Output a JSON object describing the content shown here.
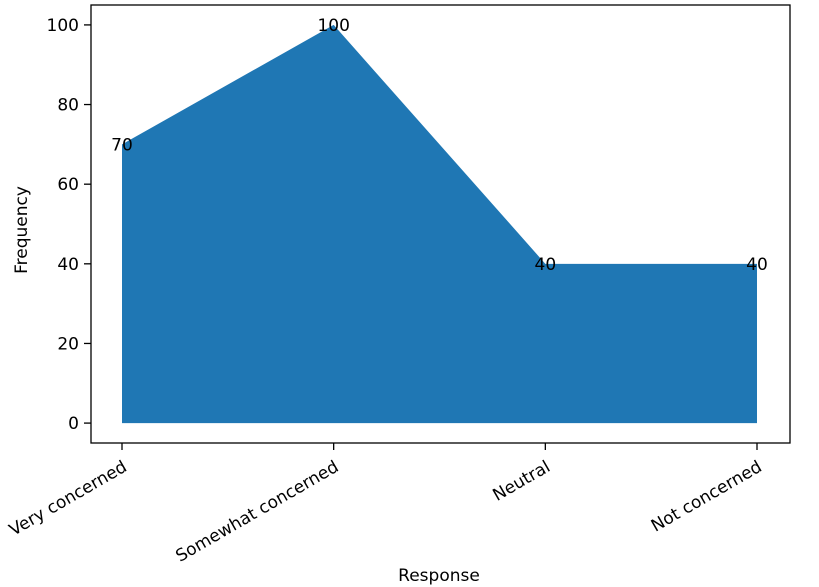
{
  "chart_data": {
    "type": "area",
    "title": "",
    "xlabel": "Response",
    "ylabel": "Frequency",
    "categories": [
      "Very concerned",
      "Somewhat concerned",
      "Neutral",
      "Not concerned"
    ],
    "values": [
      70,
      100,
      40,
      40
    ],
    "data_labels": [
      "70",
      "100",
      "40",
      "40"
    ],
    "ylim": [
      -5,
      105
    ],
    "yticks": [
      0,
      20,
      40,
      60,
      80,
      100
    ],
    "grid": false,
    "colors": {
      "fill": "#1f77b4",
      "axis": "#000000"
    }
  }
}
